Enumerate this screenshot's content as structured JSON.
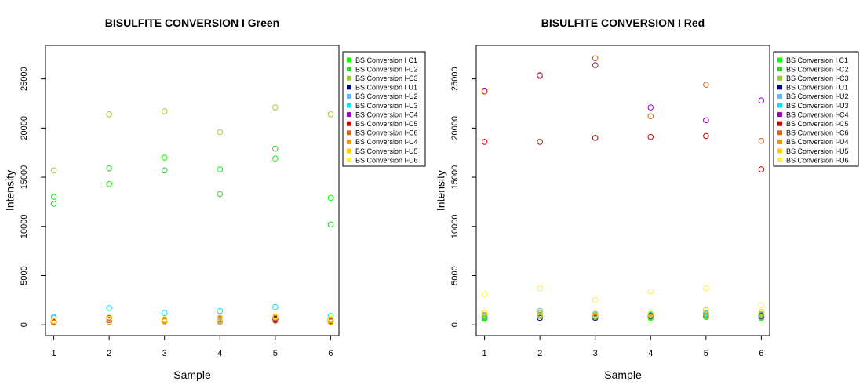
{
  "chart_data": [
    {
      "type": "scatter",
      "title": "BISULFITE CONVERSION I Green",
      "xlabel": "Sample",
      "ylabel": "Intensity",
      "x": [
        1,
        2,
        3,
        4,
        5,
        6
      ],
      "xlim": [
        0.85,
        6.15
      ],
      "ylim": [
        -1100,
        28400
      ],
      "yticks": [
        0,
        5000,
        10000,
        15000,
        20000,
        25000
      ],
      "grid": false,
      "legend_position": "right",
      "series": [
        {
          "name": "BS Conversion I C1",
          "color": "#00ff00",
          "values": [
            13000,
            14300,
            17000,
            15800,
            16900,
            12900
          ]
        },
        {
          "name": "BS Conversion I-C2",
          "color": "#33cc33",
          "values": [
            12300,
            15900,
            15700,
            13300,
            17900,
            10200
          ]
        },
        {
          "name": "BS Conversion I-C3",
          "color": "#99cc33",
          "values": [
            15700,
            21400,
            21700,
            19600,
            22100,
            21400
          ]
        },
        {
          "name": "BS Conversion I U1",
          "color": "#000080",
          "values": [
            300,
            500,
            400,
            500,
            500,
            400
          ]
        },
        {
          "name": "BS Conversion I-U2",
          "color": "#66b3ff",
          "values": [
            700,
            600,
            500,
            400,
            600,
            500
          ]
        },
        {
          "name": "BS Conversion I-U3",
          "color": "#00e5ee",
          "values": [
            800,
            1700,
            1200,
            1400,
            1800,
            900
          ]
        },
        {
          "name": "BS Conversion I-C4",
          "color": "#9900cc",
          "values": [
            250,
            550,
            350,
            550,
            550,
            350
          ]
        },
        {
          "name": "BS Conversion I-C5",
          "color": "#cc0000",
          "values": [
            300,
            650,
            400,
            600,
            600,
            450
          ]
        },
        {
          "name": "BS Conversion I-C6",
          "color": "#d2691e",
          "values": [
            400,
            700,
            500,
            700,
            700,
            500
          ]
        },
        {
          "name": "BS Conversion I-U4",
          "color": "#e69900",
          "values": [
            200,
            300,
            350,
            300,
            400,
            300
          ]
        },
        {
          "name": "BS Conversion I-U5",
          "color": "#ffcc00",
          "values": [
            350,
            550,
            450,
            500,
            800,
            450
          ]
        },
        {
          "name": "BS Conversion I-U6",
          "color": "#ffee44",
          "values": [
            450,
            600,
            600,
            650,
            900,
            600
          ]
        }
      ]
    },
    {
      "type": "scatter",
      "title": "BISULFITE CONVERSION I Red",
      "xlabel": "Sample",
      "ylabel": "Intensity",
      "x": [
        1,
        2,
        3,
        4,
        5,
        6
      ],
      "xlim": [
        0.85,
        6.15
      ],
      "ylim": [
        -1100,
        28400
      ],
      "yticks": [
        0,
        5000,
        10000,
        15000,
        20000,
        25000
      ],
      "grid": false,
      "legend_position": "right",
      "series": [
        {
          "name": "BS Conversion I C1",
          "color": "#00ff00",
          "values": [
            600,
            900,
            800,
            700,
            800,
            700
          ]
        },
        {
          "name": "BS Conversion I-C2",
          "color": "#33cc33",
          "values": [
            700,
            1000,
            900,
            800,
            900,
            800
          ]
        },
        {
          "name": "BS Conversion I-C3",
          "color": "#99cc33",
          "values": [
            900,
            1200,
            1100,
            1000,
            1100,
            1000
          ]
        },
        {
          "name": "BS Conversion I U1",
          "color": "#000080",
          "values": [
            800,
            700,
            700,
            900,
            1000,
            900
          ]
        },
        {
          "name": "BS Conversion I-U2",
          "color": "#66b3ff",
          "values": [
            1000,
            1400,
            1100,
            1100,
            1200,
            1000
          ]
        },
        {
          "name": "BS Conversion I-U3",
          "color": "#00e5ee",
          "values": [
            800,
            1000,
            900,
            1000,
            1100,
            1000
          ]
        },
        {
          "name": "BS Conversion I-C4",
          "color": "#9900cc",
          "values": [
            23800,
            25300,
            26400,
            22100,
            20800,
            22800
          ]
        },
        {
          "name": "BS Conversion I-C5",
          "color": "#cc0000",
          "values": [
            18600,
            18600,
            19000,
            19100,
            19200,
            15800
          ]
        },
        {
          "name": "BS Conversion I-C6",
          "color": "#d2691e",
          "values": [
            23700,
            25400,
            27100,
            21200,
            24400,
            18700
          ]
        },
        {
          "name": "BS Conversion I-U4",
          "color": "#e69900",
          "values": [
            900,
            900,
            800,
            800,
            1000,
            1100
          ]
        },
        {
          "name": "BS Conversion I-U5",
          "color": "#ffcc00",
          "values": [
            1200,
            1100,
            1000,
            1100,
            1500,
            1300
          ]
        },
        {
          "name": "BS Conversion I-U6",
          "color": "#ffee44",
          "values": [
            3100,
            3700,
            2500,
            3400,
            3700,
            2000
          ]
        }
      ]
    }
  ]
}
